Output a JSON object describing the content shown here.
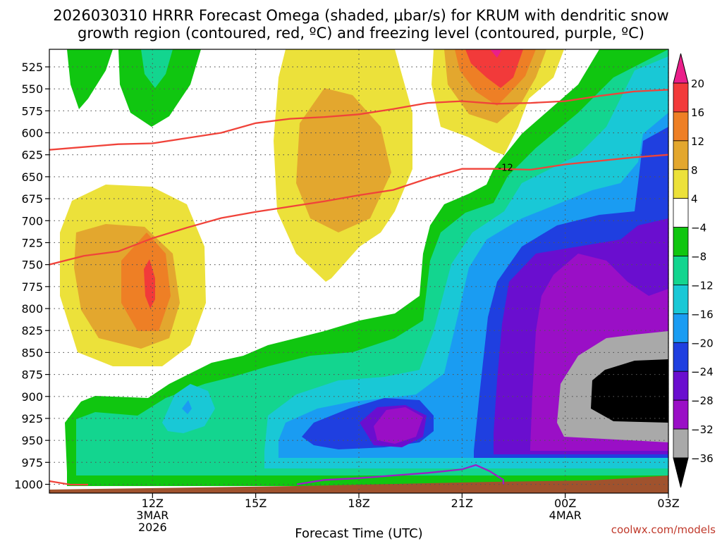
{
  "chart_data": {
    "type": "heatmap",
    "title_line1": "2026030310 HRRR Forecast Omega (shaded, μbar/s) for KRUM with dendritic snow",
    "title_line2": "growth region (contoured, red, ºC) and freezing level (contoured, purple, ºC)",
    "xlabel": "Forecast Time (UTC)",
    "credit": "coolwx.com/models",
    "x_unit": "hours since 2026-03-03 09Z",
    "xlim": [
      0,
      18
    ],
    "ylim": [
      1010,
      505
    ],
    "y_ticks": [
      525,
      550,
      575,
      600,
      625,
      650,
      675,
      700,
      725,
      750,
      775,
      800,
      825,
      850,
      875,
      900,
      925,
      950,
      975,
      1000
    ],
    "x_ticks": [
      {
        "hour": 3,
        "label": "12Z",
        "sub1": "3MAR",
        "sub2": "2026"
      },
      {
        "hour": 6,
        "label": "15Z",
        "sub1": "",
        "sub2": ""
      },
      {
        "hour": 9,
        "label": "18Z",
        "sub1": "",
        "sub2": ""
      },
      {
        "hour": 12,
        "label": "21Z",
        "sub1": "",
        "sub2": ""
      },
      {
        "hour": 15,
        "label": "00Z",
        "sub1": "4MAR",
        "sub2": ""
      },
      {
        "hour": 18,
        "label": "03Z",
        "sub1": "",
        "sub2": ""
      }
    ],
    "colorbar": {
      "levels": [
        -36,
        -32,
        -28,
        -24,
        -20,
        -16,
        -12,
        -8,
        -4,
        4,
        8,
        12,
        16,
        20
      ],
      "colors": [
        "#000000",
        "#a9a9a9",
        "#9a0fc6",
        "#6a0ecf",
        "#1f3fe0",
        "#1a9cf2",
        "#19c8d6",
        "#13d58f",
        "#10c610",
        "#ffffff",
        "#ece13a",
        "#e3a72e",
        "#ee7f25",
        "#f23a3a",
        "#ea1f8a"
      ],
      "tick_labels": [
        "20",
        "16",
        "12",
        "8",
        "4",
        "−4",
        "−8",
        "−12",
        "−16",
        "−20",
        "−24",
        "−28",
        "−32",
        "−36"
      ]
    },
    "dgz_contour_label": "-12",
    "dgz_upper": [
      [
        -0.2,
        620
      ],
      [
        2,
        613
      ],
      [
        3,
        612
      ],
      [
        4,
        606
      ],
      [
        5,
        600
      ],
      [
        6,
        589
      ],
      [
        7,
        584
      ],
      [
        8,
        582
      ],
      [
        9,
        579
      ],
      [
        10,
        573
      ],
      [
        11,
        566
      ],
      [
        12,
        564
      ],
      [
        13,
        567
      ],
      [
        14,
        566
      ],
      [
        15,
        564
      ],
      [
        16,
        558
      ],
      [
        17,
        553
      ],
      [
        18,
        551
      ]
    ],
    "dgz_lower": [
      [
        0,
        750
      ],
      [
        1,
        740
      ],
      [
        2,
        735
      ],
      [
        3,
        720
      ],
      [
        4,
        708
      ],
      [
        5,
        697
      ],
      [
        6,
        690
      ],
      [
        7,
        684
      ],
      [
        8,
        678
      ],
      [
        9,
        671
      ],
      [
        10,
        665
      ],
      [
        11,
        652
      ],
      [
        12,
        641
      ],
      [
        13,
        641
      ],
      [
        14,
        642
      ],
      [
        15,
        636
      ],
      [
        16,
        632
      ],
      [
        17,
        628
      ],
      [
        18,
        625
      ]
    ],
    "freezing_level": [
      [
        7.2,
        1000
      ],
      [
        8,
        995
      ],
      [
        9,
        993
      ],
      [
        10,
        990
      ],
      [
        11,
        987
      ],
      [
        12,
        983
      ],
      [
        12.4,
        978
      ],
      [
        12.8,
        985
      ],
      [
        13.2,
        995
      ],
      [
        13.2,
        1000
      ]
    ]
  }
}
